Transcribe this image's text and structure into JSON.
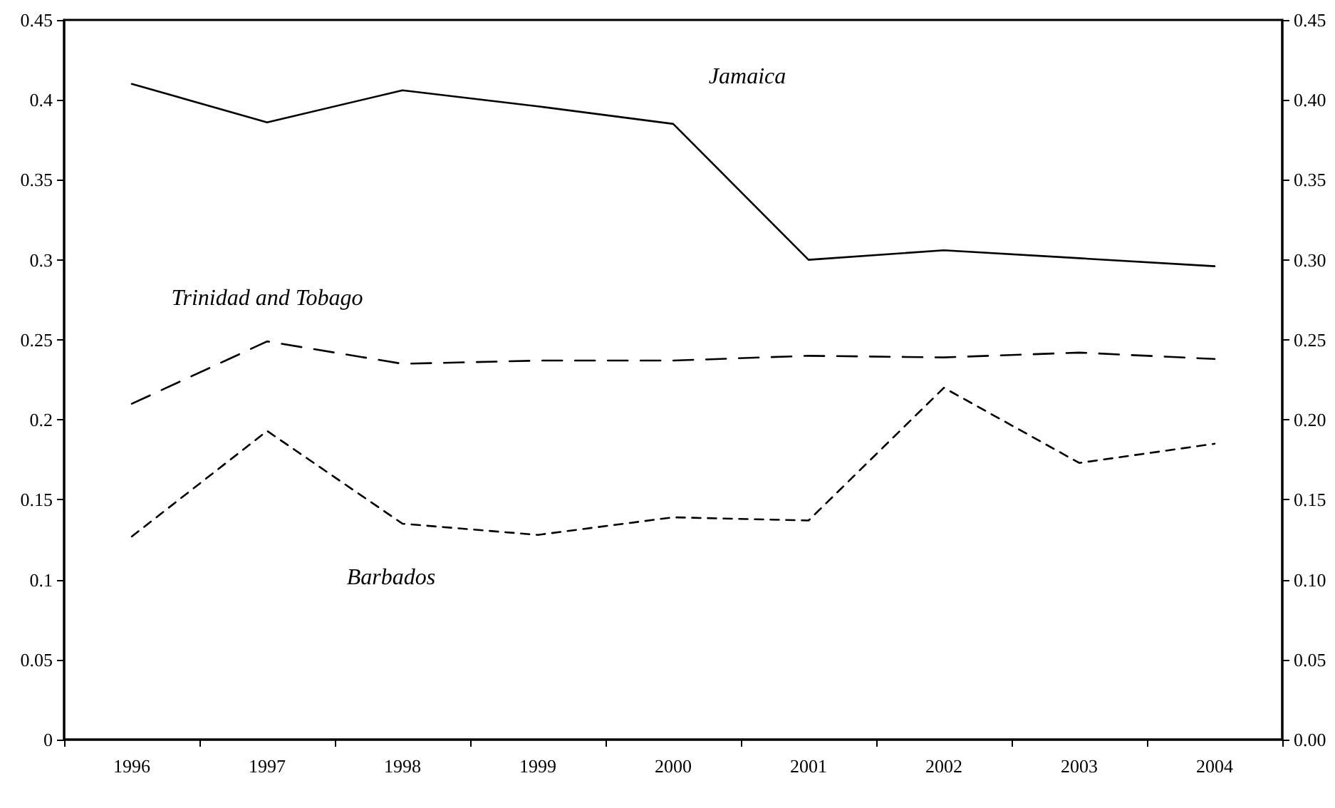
{
  "chart_data": {
    "type": "line",
    "categories": [
      "1996",
      "1997",
      "1998",
      "1999",
      "2000",
      "2001",
      "2002",
      "2003",
      "2004"
    ],
    "series": [
      {
        "name": "Jamaica",
        "color": "#000000",
        "line_style": "solid",
        "values": [
          0.41,
          0.386,
          0.406,
          0.396,
          0.385,
          0.3,
          0.306,
          0.301,
          0.296
        ]
      },
      {
        "name": "Trinidad and Tobago",
        "color": "#000000",
        "line_style": "dashed",
        "values": [
          0.21,
          0.249,
          0.235,
          0.237,
          0.237,
          0.24,
          0.239,
          0.242,
          0.238
        ]
      },
      {
        "name": "Barbados",
        "color": "#000000",
        "line_style": "dashed",
        "values": [
          0.127,
          0.193,
          0.135,
          0.128,
          0.139,
          0.137,
          0.22,
          0.173,
          0.185
        ]
      }
    ],
    "ylim": [
      0,
      0.45
    ],
    "yticks": [
      0,
      0.05,
      0.1,
      0.15,
      0.2,
      0.25,
      0.3,
      0.35,
      0.4,
      0.45
    ],
    "y2lim": [
      0,
      0.45
    ],
    "y2ticks": [
      {
        "value": 0,
        "label": "0.00"
      },
      {
        "value": 0.05,
        "label": "0.05"
      },
      {
        "value": 0.1,
        "label": "0.10"
      },
      {
        "value": 0.15,
        "label": "0.15"
      },
      {
        "value": 0.2,
        "label": "0.20"
      },
      {
        "value": 0.25,
        "label": "0.25"
      },
      {
        "value": 0.3,
        "label": "0.30"
      },
      {
        "value": 0.35,
        "label": "0.35"
      },
      {
        "value": 0.4,
        "label": "0.40"
      },
      {
        "value": 0.45,
        "label": "0.45"
      }
    ],
    "grid": false,
    "legend": false,
    "marker": "none"
  }
}
